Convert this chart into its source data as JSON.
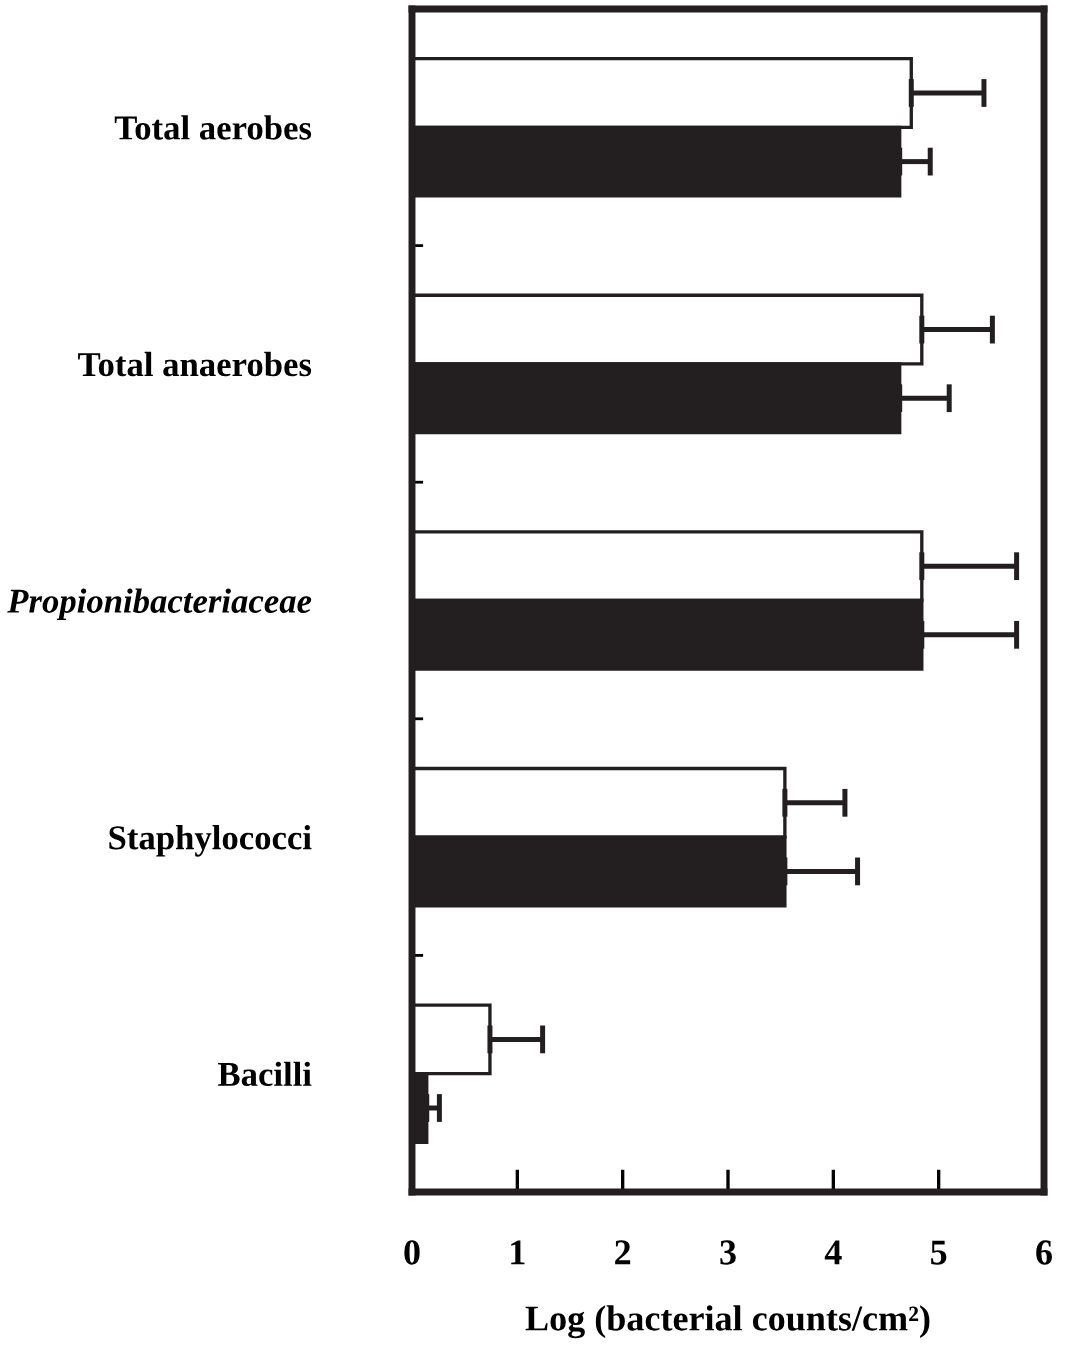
{
  "chart_data": {
    "type": "bar",
    "orientation": "horizontal",
    "xlabel": "Log (bacterial counts/cm²)",
    "categories": [
      "Total aerobes",
      "Total anaerobes",
      "Propionibacteriaceae",
      "Staphylococci",
      "Bacilli"
    ],
    "series": [
      {
        "color": "#ffffff",
        "values": [
          4.74,
          4.84,
          4.84,
          3.54,
          0.74
        ],
        "errors": [
          [
            4.74,
            5.43
          ],
          [
            4.84,
            5.51
          ],
          [
            4.84,
            5.74
          ],
          [
            3.54,
            4.11
          ],
          [
            0.74,
            1.24
          ]
        ]
      },
      {
        "color": "#231f20",
        "values": [
          4.63,
          4.63,
          4.84,
          3.54,
          0.14
        ],
        "errors": [
          [
            4.63,
            4.92
          ],
          [
            4.63,
            5.1
          ],
          [
            4.84,
            5.74
          ],
          [
            3.54,
            4.23
          ],
          [
            0.14,
            0.26
          ]
        ]
      }
    ],
    "xlim": [
      0,
      6
    ],
    "xticks": [
      0,
      1,
      2,
      3,
      4,
      5,
      6
    ],
    "grid": false
  }
}
